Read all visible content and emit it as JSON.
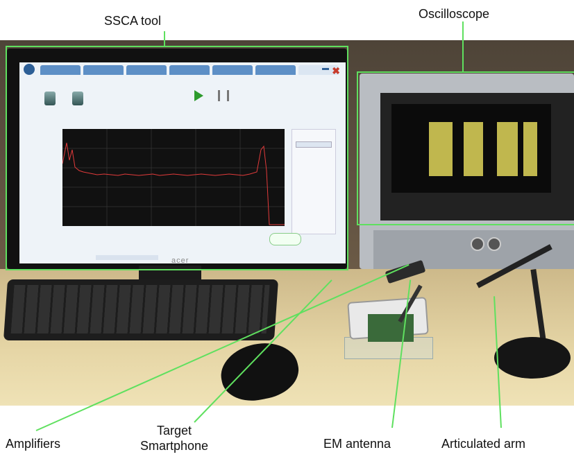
{
  "labels": {
    "ssca_tool": "SSCA tool",
    "oscilloscope": "Oscilloscope",
    "amplifiers": "Amplifiers",
    "target_line1": "Target",
    "target_line2": "Smartphone",
    "em_antenna": "EM antenna",
    "articulated_arm": "Articulated arm"
  },
  "monitor_brand": "acer",
  "highlight_color": "#5fe05f"
}
